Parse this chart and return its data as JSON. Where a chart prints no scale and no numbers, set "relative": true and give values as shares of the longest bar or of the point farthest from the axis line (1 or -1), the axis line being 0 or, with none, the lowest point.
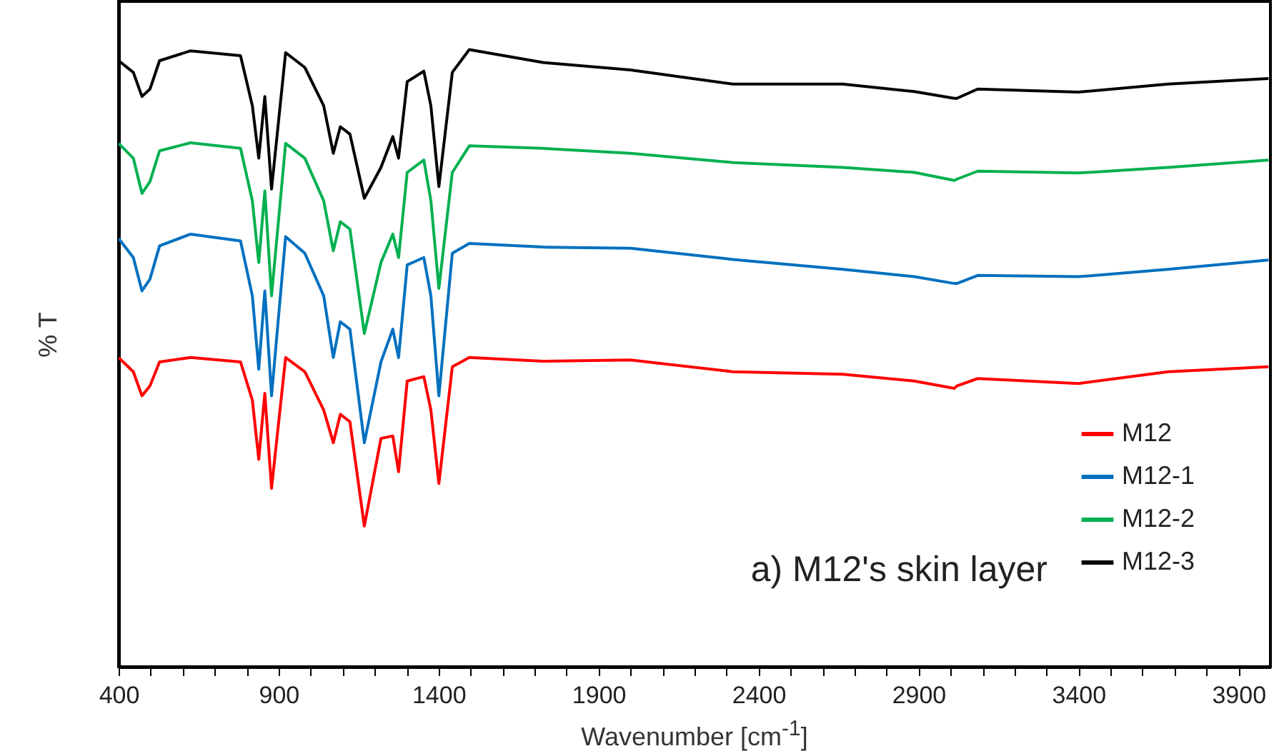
{
  "chart_data": {
    "type": "line",
    "relative": true,
    "xlabel": "Wavenumber [cm$^{-1}$]",
    "ylabel": "% T",
    "xlim": [
      400,
      4000
    ],
    "xticks": [
      400,
      {
        "value": 500,
        "label": null
      },
      {
        "value": 600,
        "label": null
      },
      {
        "value": 700,
        "label": null
      },
      {
        "value": 800,
        "label": null
      },
      900,
      {
        "value": 1000,
        "label": null
      },
      {
        "value": 1100,
        "label": null
      },
      {
        "value": 1200,
        "label": null
      },
      {
        "value": 1300,
        "label": null
      },
      1400,
      {
        "value": 1500,
        "label": null
      },
      {
        "value": 1600,
        "label": null
      },
      {
        "value": 1700,
        "label": null
      },
      {
        "value": 1800,
        "label": null
      },
      1900,
      {
        "value": 2000,
        "label": null
      },
      {
        "value": 2100,
        "label": null
      },
      {
        "value": 2200,
        "label": null
      },
      {
        "value": 2300,
        "label": null
      },
      2400,
      {
        "value": 2500,
        "label": null
      },
      {
        "value": 2600,
        "label": null
      },
      {
        "value": 2700,
        "label": null
      },
      {
        "value": 2800,
        "label": null
      },
      2900,
      {
        "value": 3000,
        "label": null
      },
      {
        "value": 3100,
        "label": null
      },
      {
        "value": 3200,
        "label": null
      },
      {
        "value": 3300,
        "label": null
      },
      3400,
      {
        "value": 3500,
        "label": null
      },
      {
        "value": 3600,
        "label": null
      },
      {
        "value": 3700,
        "label": null
      },
      {
        "value": 3800,
        "label": null
      },
      3900
    ],
    "x": [
      400,
      446,
      473,
      498,
      528,
      625,
      781,
      818,
      838,
      857,
      878,
      922,
      982,
      1041,
      1071,
      1093,
      1123,
      1168,
      1220,
      1257,
      1275,
      1302,
      1354,
      1376,
      1401,
      1443,
      1496,
      1726,
      2000,
      2320,
      2663,
      2887,
      3012,
      3020,
      3085,
      3400,
      3680,
      3994
    ],
    "series": [
      {
        "name": "M12",
        "color": "#ff0000",
        "values": [
          0.501,
          0.478,
          0.439,
          0.455,
          0.494,
          0.501,
          0.494,
          0.432,
          0.336,
          0.443,
          0.289,
          0.501,
          0.478,
          0.416,
          0.363,
          0.409,
          0.397,
          0.228,
          0.37,
          0.374,
          0.316,
          0.463,
          0.47,
          0.416,
          0.297,
          0.486,
          0.501,
          0.495,
          0.497,
          0.478,
          0.474,
          0.463,
          0.451,
          0.455,
          0.467,
          0.459,
          0.478,
          0.486
        ]
      },
      {
        "name": "M12-1",
        "color": "#0070c0",
        "values": [
          0.694,
          0.663,
          0.609,
          0.628,
          0.682,
          0.701,
          0.69,
          0.601,
          0.482,
          0.609,
          0.439,
          0.697,
          0.67,
          0.601,
          0.501,
          0.559,
          0.547,
          0.363,
          0.494,
          0.547,
          0.501,
          0.651,
          0.663,
          0.601,
          0.439,
          0.67,
          0.686,
          0.68,
          0.678,
          0.66,
          0.644,
          0.632,
          0.621,
          0.621,
          0.634,
          0.632,
          0.644,
          0.659
        ]
      },
      {
        "name": "M12-2",
        "color": "#00b050",
        "values": [
          0.848,
          0.824,
          0.767,
          0.786,
          0.836,
          0.849,
          0.84,
          0.755,
          0.655,
          0.771,
          0.601,
          0.848,
          0.824,
          0.755,
          0.674,
          0.721,
          0.709,
          0.54,
          0.655,
          0.701,
          0.663,
          0.801,
          0.821,
          0.755,
          0.613,
          0.801,
          0.844,
          0.84,
          0.832,
          0.817,
          0.809,
          0.801,
          0.788,
          0.79,
          0.803,
          0.8,
          0.809,
          0.821
        ]
      },
      {
        "name": "M12-3",
        "color": "#000000",
        "values": [
          0.982,
          0.963,
          0.924,
          0.936,
          0.982,
          0.998,
          0.99,
          0.909,
          0.824,
          0.924,
          0.774,
          0.995,
          0.971,
          0.909,
          0.832,
          0.875,
          0.863,
          0.759,
          0.809,
          0.859,
          0.824,
          0.948,
          0.965,
          0.909,
          0.778,
          0.963,
          1.0,
          0.979,
          0.967,
          0.944,
          0.944,
          0.932,
          0.921,
          0.921,
          0.936,
          0.931,
          0.944,
          0.953
        ]
      }
    ],
    "legend": "bottom right",
    "annotations": [
      "a) M12's skin layer"
    ]
  }
}
